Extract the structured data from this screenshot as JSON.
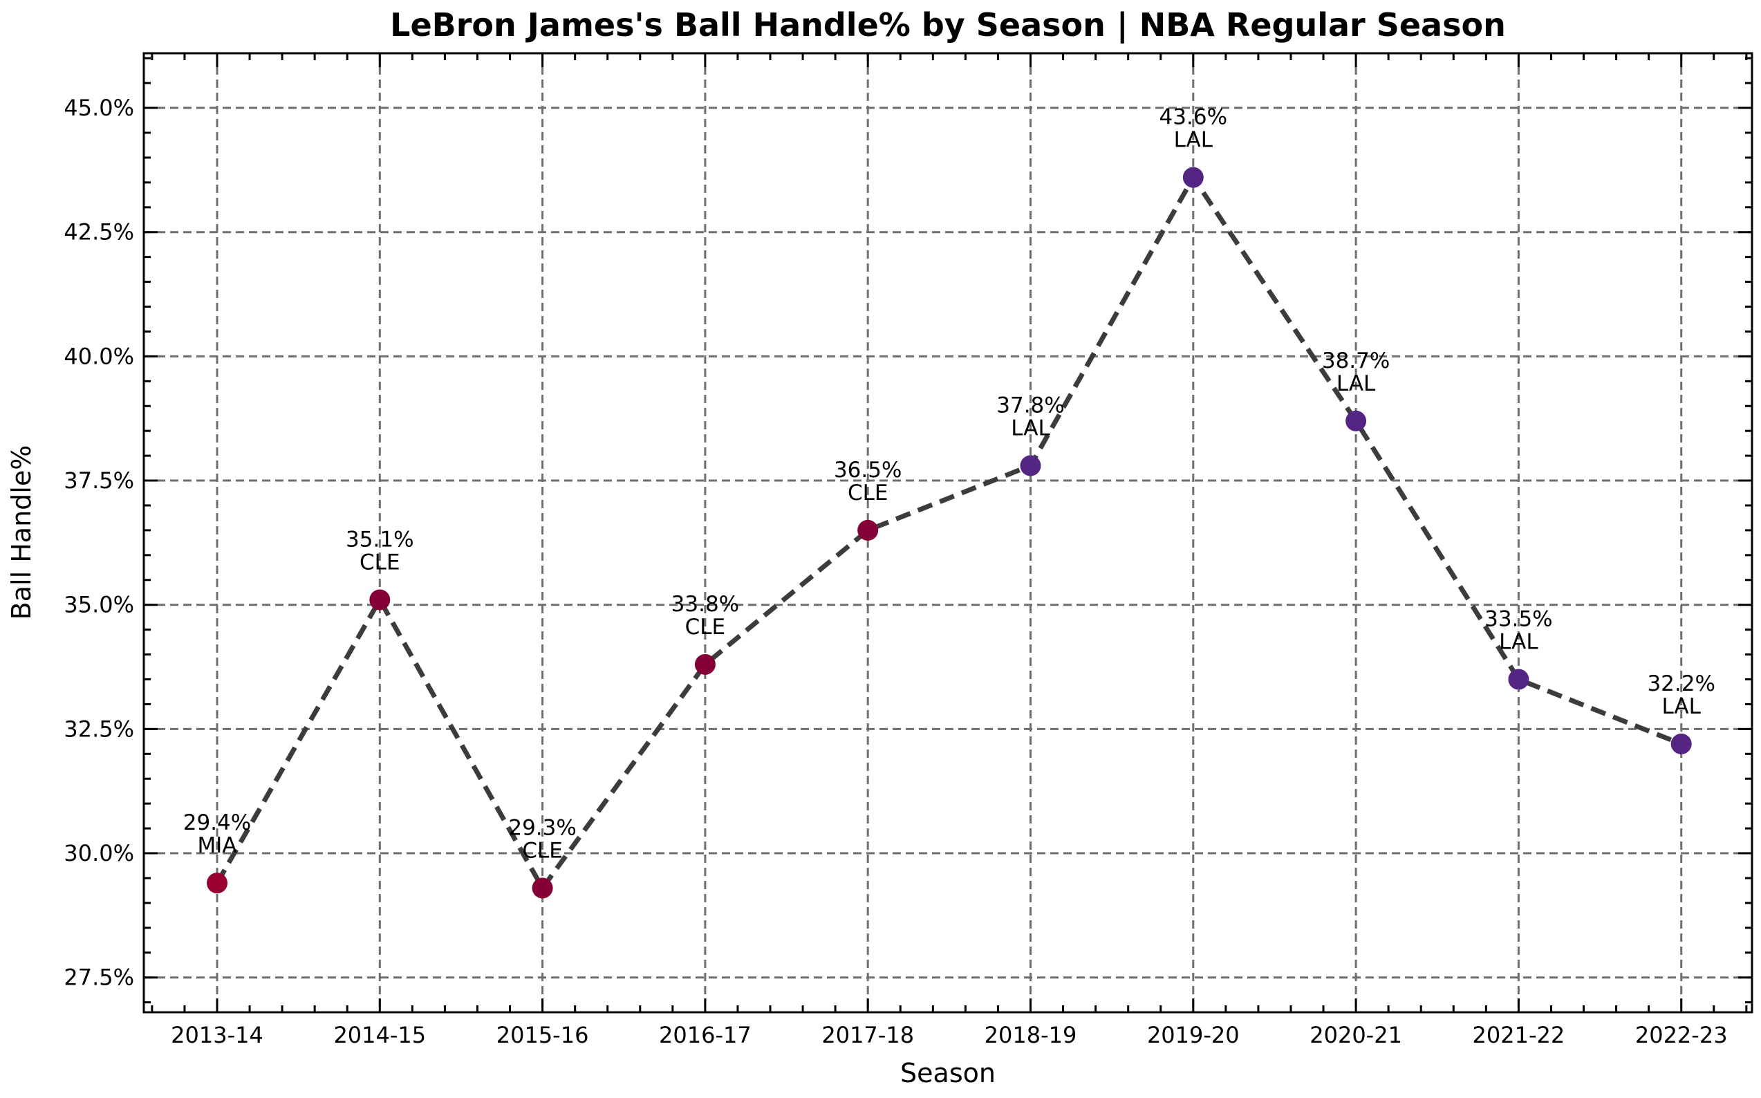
{
  "chart_data": {
    "type": "line",
    "title": "LeBron James's Ball Handle% by Season | NBA Regular Season",
    "xlabel": "Season",
    "ylabel": "Ball Handle%",
    "ylim": [
      26.8,
      46.1
    ],
    "yticks": [
      27.5,
      30.0,
      32.5,
      35.0,
      37.5,
      40.0,
      42.5,
      45.0
    ],
    "ytick_labels": [
      "27.5%",
      "30.0%",
      "32.5%",
      "35.0%",
      "37.5%",
      "40.0%",
      "42.5%",
      "45.0%"
    ],
    "grid": true,
    "categories": [
      "2013-14",
      "2014-15",
      "2015-16",
      "2016-17",
      "2017-18",
      "2018-19",
      "2019-20",
      "2020-21",
      "2021-22",
      "2022-23"
    ],
    "values": [
      29.4,
      35.1,
      29.3,
      33.8,
      36.5,
      37.8,
      43.6,
      38.7,
      33.5,
      32.2
    ],
    "value_labels": [
      "29.4%",
      "35.1%",
      "29.3%",
      "33.8%",
      "36.5%",
      "37.8%",
      "43.6%",
      "38.7%",
      "33.5%",
      "32.2%"
    ],
    "teams": [
      "MIA",
      "CLE",
      "CLE",
      "CLE",
      "CLE",
      "LAL",
      "LAL",
      "LAL",
      "LAL",
      "LAL"
    ],
    "team_colors": {
      "MIA": "#98002E",
      "CLE": "#860038",
      "LAL": "#552583"
    },
    "line_color": "#3c3c3c"
  }
}
